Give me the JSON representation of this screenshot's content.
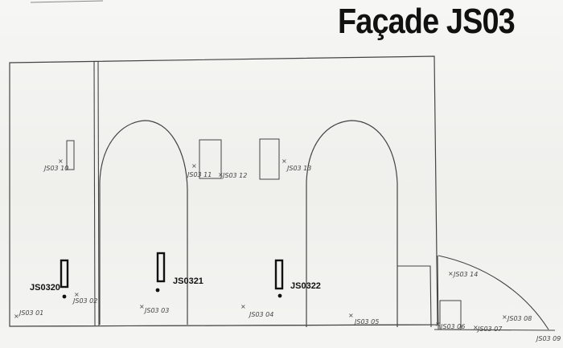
{
  "title": "Façade JS03",
  "sample_labels": {
    "js0320": "JS0320",
    "js0321": "JS0321",
    "js0322": "JS0322"
  },
  "handwritten_labels": {
    "p01": "JS03 01",
    "p02": "JS03 02",
    "p03": "JS03 03",
    "p04": "JS03 04",
    "p05": "JS03 05",
    "p06": "JS03 06",
    "p07": "JS03 07",
    "p08": "JS03 08",
    "p09": "JS03 09",
    "p10": "JS03 10",
    "p11": "JS03 11",
    "p12": "JS03 12",
    "p13": "JS03 13",
    "p14": "JS03 14"
  },
  "colors": {
    "ink": "#333333",
    "marker": "#111111",
    "paper": "#f3f3f1"
  }
}
